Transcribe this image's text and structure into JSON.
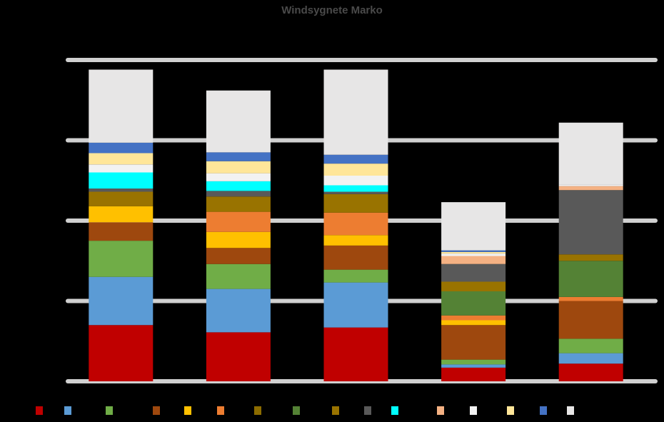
{
  "chart_data": {
    "type": "bar",
    "stacked": true,
    "title": "Windsygnete Marko",
    "xlabel": "",
    "ylabel": "",
    "ylim": [
      0,
      4
    ],
    "grid": true,
    "legend_position": "bottom",
    "categories": [
      "",
      "",
      "",
      "",
      ""
    ],
    "total_labels": [
      "",
      "",
      "",
      "",
      ""
    ],
    "series": [
      {
        "color": "#c00000",
        "values": [
          0.7,
          0.61,
          0.67,
          0.17,
          0.22
        ]
      },
      {
        "color": "#5b9bd5",
        "values": [
          0.6,
          0.54,
          0.56,
          0.04,
          0.13
        ]
      },
      {
        "color": "#70ad47",
        "values": [
          0.45,
          0.31,
          0.16,
          0.06,
          0.18
        ]
      },
      {
        "color": "#9e480e",
        "values": [
          0.23,
          0.2,
          0.3,
          0.43,
          0.47
        ]
      },
      {
        "color": "#ffc000",
        "values": [
          0.2,
          0.2,
          0.13,
          0.06,
          0.0
        ]
      },
      {
        "color": "#ed7d31",
        "values": [
          0.0,
          0.25,
          0.28,
          0.06,
          0.05
        ]
      },
      {
        "color": "#8c6c00",
        "values": [
          0.0,
          0.0,
          0.0,
          0.0,
          0.0
        ]
      },
      {
        "color": "#548235",
        "values": [
          0.0,
          0.0,
          0.0,
          0.3,
          0.45
        ]
      },
      {
        "color": "#997300",
        "values": [
          0.18,
          0.19,
          0.23,
          0.12,
          0.08
        ]
      },
      {
        "color": "#595959",
        "values": [
          0.04,
          0.07,
          0.03,
          0.22,
          0.8
        ]
      },
      {
        "color": "#00ffff",
        "values": [
          0.2,
          0.12,
          0.08,
          0.0,
          0.0
        ]
      },
      {
        "color": "#f4b183",
        "values": [
          0.0,
          0.0,
          0.0,
          0.1,
          0.05
        ]
      },
      {
        "color": "#f2f2f2",
        "values": [
          0.1,
          0.1,
          0.12,
          0.03,
          0.02
        ]
      },
      {
        "color": "#ffe699",
        "values": [
          0.14,
          0.15,
          0.15,
          0.02,
          0.0
        ]
      },
      {
        "color": "#4472c4",
        "values": [
          0.13,
          0.11,
          0.11,
          0.02,
          0.0
        ]
      },
      {
        "color": "#e7e6e6",
        "values": [
          0.91,
          0.77,
          1.06,
          0.6,
          0.77
        ]
      }
    ]
  }
}
